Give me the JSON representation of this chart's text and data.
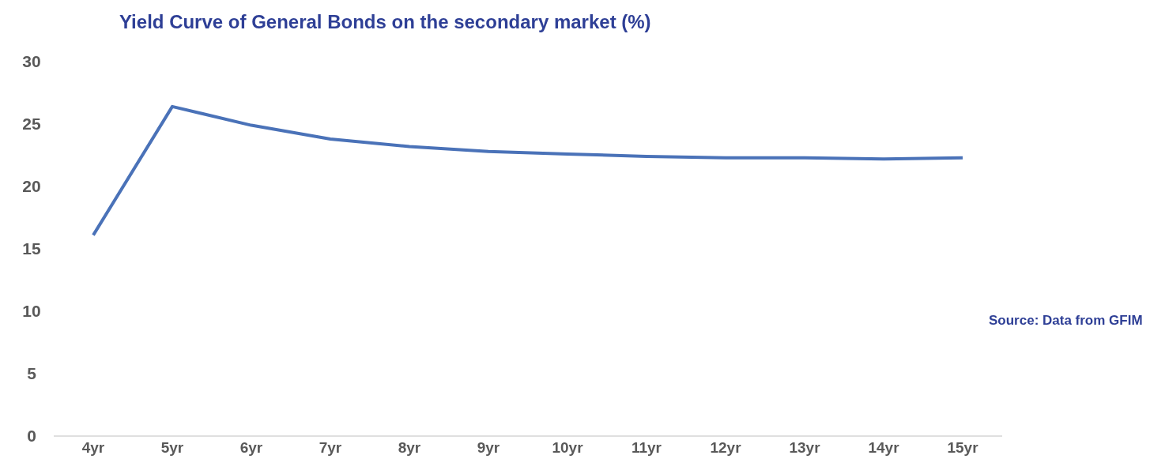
{
  "chart_data": {
    "type": "line",
    "title": "Yield Curve of General Bonds on the secondary market (%)",
    "categories": [
      "4yr",
      "5yr",
      "6yr",
      "7yr",
      "8yr",
      "9yr",
      "10yr",
      "11yr",
      "12yr",
      "13yr",
      "14yr",
      "15yr"
    ],
    "series": [
      {
        "color": "#4a72b8",
        "values": [
          16.1,
          26.4,
          24.9,
          23.8,
          23.2,
          22.8,
          22.6,
          22.4,
          22.3,
          22.3,
          22.2,
          22.3
        ]
      }
    ],
    "ylim": [
      0,
      30
    ],
    "yticks": [
      0,
      5,
      10,
      15,
      20,
      25,
      30
    ],
    "grid": false,
    "legend": false,
    "marker": "none",
    "line_style": "solid",
    "annotations": [
      "Source: Data from GFIM"
    ]
  }
}
